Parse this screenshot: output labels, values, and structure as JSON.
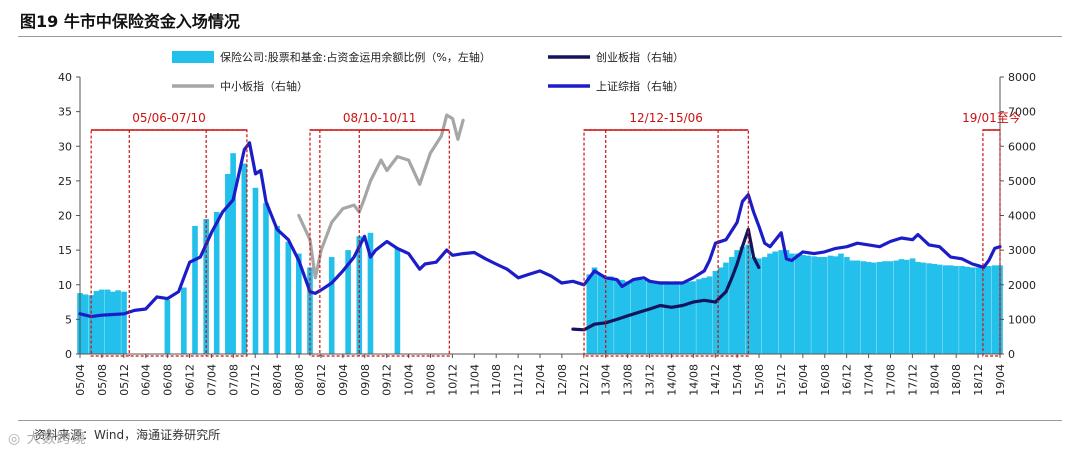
{
  "figure": {
    "title": "图19 牛市中保险资金入场情况",
    "source": "资料来源：Wind，海通证券研究所",
    "watermark": "◎ 大数跨境"
  },
  "colors": {
    "bars": "#22c0ea",
    "chinext": "#14145e",
    "sme": "#a6a6a6",
    "shanghai": "#1c1cc8",
    "box": "#cc1111"
  },
  "chart_data": {
    "type": "bar+line",
    "title": "",
    "x_tick_labels": [
      "05/04",
      "05/08",
      "05/12",
      "06/04",
      "06/08",
      "06/12",
      "07/04",
      "07/08",
      "07/12",
      "08/04",
      "08/08",
      "08/12",
      "09/04",
      "09/08",
      "09/12",
      "10/04",
      "10/08",
      "10/12",
      "11/04",
      "11/08",
      "11/12",
      "12/04",
      "12/08",
      "12/12",
      "13/04",
      "13/08",
      "13/12",
      "14/04",
      "14/08",
      "14/12",
      "15/04",
      "15/08",
      "15/12",
      "16/04",
      "16/08",
      "16/12",
      "17/04",
      "17/08",
      "17/12",
      "18/04",
      "18/08",
      "18/12",
      "19/04"
    ],
    "y_left": {
      "min": 0,
      "max": 40,
      "ticks": [
        "0",
        "5",
        "10",
        "15",
        "20",
        "25",
        "30",
        "35",
        "40"
      ]
    },
    "y_right": {
      "min": 0,
      "max": 8000,
      "ticks": [
        "0",
        "1000",
        "2000",
        "3000",
        "4000",
        "5000",
        "6000",
        "7000",
        "8000"
      ]
    },
    "legend": [
      {
        "key": "bars",
        "label": "保险公司:股票和基金:占资金运用余额比例（%，左轴）"
      },
      {
        "key": "chinext",
        "label": "创业板指（右轴）"
      },
      {
        "key": "sme",
        "label": "中小板指（右轴）"
      },
      {
        "key": "shanghai",
        "label": "上证综指（右轴）"
      }
    ],
    "periods": [
      {
        "label": "05/06-07/10",
        "start": 2005.42,
        "end": 2007.79,
        "inner": [
          2006.0,
          2007.17
        ]
      },
      {
        "label": "08/10-10/11",
        "start": 2008.75,
        "end": 2010.87,
        "inner": [
          2008.9,
          2009.5
        ]
      },
      {
        "label": "12/12-15/06",
        "start": 2012.92,
        "end": 2015.42,
        "inner": [
          2013.25,
          2014.96
        ]
      },
      {
        "label": "19/01至今",
        "start": 2018.99,
        "end": 2019.25,
        "inner": []
      }
    ],
    "bars_series": {
      "name": "保险公司:股票和基金:占资金运用余额比例（%，左轴）",
      "points": [
        [
          2005.25,
          8.8
        ],
        [
          2005.33,
          8.6
        ],
        [
          2005.42,
          8.5
        ],
        [
          2005.5,
          9.1
        ],
        [
          2005.58,
          9.3
        ],
        [
          2005.67,
          9.3
        ],
        [
          2005.75,
          9.0
        ],
        [
          2005.83,
          9.2
        ],
        [
          2005.92,
          9.0
        ],
        [
          2006.58,
          7.8
        ],
        [
          2006.83,
          9.6
        ],
        [
          2007.0,
          18.5
        ],
        [
          2007.17,
          19.5
        ],
        [
          2007.33,
          20.5
        ],
        [
          2007.5,
          26.0
        ],
        [
          2007.58,
          29.0
        ],
        [
          2007.75,
          27.5
        ],
        [
          2007.92,
          24.0
        ],
        [
          2008.08,
          21.8
        ],
        [
          2008.25,
          18.5
        ],
        [
          2008.42,
          16.2
        ],
        [
          2008.58,
          14.5
        ],
        [
          2008.75,
          12.5
        ],
        [
          2009.08,
          14.0
        ],
        [
          2009.33,
          15.0
        ],
        [
          2009.5,
          17.0
        ],
        [
          2009.67,
          17.5
        ],
        [
          2010.08,
          15.3
        ],
        [
          2013.0,
          11.5
        ],
        [
          2013.08,
          12.5
        ],
        [
          2013.17,
          11.5
        ],
        [
          2013.25,
          11.0
        ],
        [
          2013.33,
          11.2
        ],
        [
          2013.42,
          10.8
        ],
        [
          2013.5,
          10.7
        ],
        [
          2013.58,
          10.5
        ],
        [
          2013.67,
          10.6
        ],
        [
          2013.75,
          10.8
        ],
        [
          2013.83,
          10.7
        ],
        [
          2013.92,
          10.6
        ],
        [
          2014.0,
          10.5
        ],
        [
          2014.08,
          10.5
        ],
        [
          2014.17,
          10.5
        ],
        [
          2014.25,
          10.4
        ],
        [
          2014.33,
          10.5
        ],
        [
          2014.42,
          10.4
        ],
        [
          2014.5,
          10.4
        ],
        [
          2014.58,
          10.5
        ],
        [
          2014.67,
          10.8
        ],
        [
          2014.75,
          11.0
        ],
        [
          2014.83,
          11.2
        ],
        [
          2014.92,
          12.0
        ],
        [
          2015.0,
          12.5
        ],
        [
          2015.08,
          13.2
        ],
        [
          2015.17,
          14.0
        ],
        [
          2015.25,
          15.0
        ],
        [
          2015.33,
          15.5
        ],
        [
          2015.42,
          15.8
        ],
        [
          2015.5,
          14.0
        ],
        [
          2015.58,
          13.8
        ],
        [
          2015.67,
          14.0
        ],
        [
          2015.75,
          14.5
        ],
        [
          2015.83,
          14.8
        ],
        [
          2015.92,
          15.0
        ],
        [
          2016.0,
          15.0
        ],
        [
          2016.08,
          14.5
        ],
        [
          2016.17,
          14.5
        ],
        [
          2016.25,
          14.3
        ],
        [
          2016.33,
          14.2
        ],
        [
          2016.42,
          14.1
        ],
        [
          2016.5,
          14.0
        ],
        [
          2016.58,
          14.0
        ],
        [
          2016.67,
          14.2
        ],
        [
          2016.75,
          14.1
        ],
        [
          2016.83,
          14.5
        ],
        [
          2016.92,
          14.0
        ],
        [
          2017.0,
          13.5
        ],
        [
          2017.08,
          13.5
        ],
        [
          2017.17,
          13.4
        ],
        [
          2017.25,
          13.3
        ],
        [
          2017.33,
          13.2
        ],
        [
          2017.42,
          13.3
        ],
        [
          2017.5,
          13.4
        ],
        [
          2017.58,
          13.4
        ],
        [
          2017.67,
          13.5
        ],
        [
          2017.75,
          13.7
        ],
        [
          2017.83,
          13.6
        ],
        [
          2017.92,
          13.8
        ],
        [
          2018.0,
          13.3
        ],
        [
          2018.08,
          13.2
        ],
        [
          2018.17,
          13.1
        ],
        [
          2018.25,
          13.0
        ],
        [
          2018.33,
          12.9
        ],
        [
          2018.42,
          12.8
        ],
        [
          2018.5,
          12.8
        ],
        [
          2018.58,
          12.7
        ],
        [
          2018.67,
          12.7
        ],
        [
          2018.75,
          12.6
        ],
        [
          2018.83,
          12.5
        ],
        [
          2018.92,
          12.5
        ],
        [
          2019.0,
          12.6
        ],
        [
          2019.08,
          12.7
        ],
        [
          2019.17,
          12.8
        ],
        [
          2019.25,
          12.8
        ]
      ]
    },
    "series": [
      {
        "key": "shanghai",
        "name": "上证综指（右轴）",
        "points": [
          [
            2005.25,
            1160
          ],
          [
            2005.42,
            1080
          ],
          [
            2005.58,
            1120
          ],
          [
            2005.75,
            1140
          ],
          [
            2005.92,
            1160
          ],
          [
            2006.08,
            1260
          ],
          [
            2006.25,
            1300
          ],
          [
            2006.42,
            1650
          ],
          [
            2006.58,
            1600
          ],
          [
            2006.75,
            1800
          ],
          [
            2006.92,
            2650
          ],
          [
            2007.08,
            2800
          ],
          [
            2007.25,
            3500
          ],
          [
            2007.42,
            4100
          ],
          [
            2007.58,
            4450
          ],
          [
            2007.75,
            5900
          ],
          [
            2007.83,
            6100
          ],
          [
            2007.92,
            5200
          ],
          [
            2008.0,
            5300
          ],
          [
            2008.08,
            4400
          ],
          [
            2008.25,
            3600
          ],
          [
            2008.42,
            3300
          ],
          [
            2008.58,
            2700
          ],
          [
            2008.75,
            1800
          ],
          [
            2008.83,
            1750
          ],
          [
            2008.92,
            1850
          ],
          [
            2009.08,
            2050
          ],
          [
            2009.25,
            2400
          ],
          [
            2009.42,
            2800
          ],
          [
            2009.58,
            3400
          ],
          [
            2009.67,
            2800
          ],
          [
            2009.75,
            3000
          ],
          [
            2009.92,
            3250
          ],
          [
            2010.08,
            3050
          ],
          [
            2010.25,
            2900
          ],
          [
            2010.42,
            2450
          ],
          [
            2010.5,
            2600
          ],
          [
            2010.67,
            2650
          ],
          [
            2010.83,
            3000
          ],
          [
            2010.92,
            2850
          ],
          [
            2011.08,
            2900
          ],
          [
            2011.25,
            2930
          ],
          [
            2011.42,
            2750
          ],
          [
            2011.58,
            2600
          ],
          [
            2011.75,
            2450
          ],
          [
            2011.92,
            2200
          ],
          [
            2012.08,
            2300
          ],
          [
            2012.25,
            2400
          ],
          [
            2012.42,
            2250
          ],
          [
            2012.58,
            2050
          ],
          [
            2012.75,
            2100
          ],
          [
            2012.92,
            2000
          ],
          [
            2013.08,
            2400
          ],
          [
            2013.25,
            2200
          ],
          [
            2013.42,
            2150
          ],
          [
            2013.5,
            1950
          ],
          [
            2013.67,
            2150
          ],
          [
            2013.83,
            2200
          ],
          [
            2013.92,
            2100
          ],
          [
            2014.08,
            2050
          ],
          [
            2014.25,
            2050
          ],
          [
            2014.42,
            2050
          ],
          [
            2014.58,
            2200
          ],
          [
            2014.75,
            2400
          ],
          [
            2014.83,
            2700
          ],
          [
            2014.92,
            3200
          ],
          [
            2015.08,
            3300
          ],
          [
            2015.25,
            3800
          ],
          [
            2015.33,
            4400
          ],
          [
            2015.42,
            4600
          ],
          [
            2015.5,
            4100
          ],
          [
            2015.58,
            3700
          ],
          [
            2015.67,
            3200
          ],
          [
            2015.75,
            3100
          ],
          [
            2015.92,
            3500
          ],
          [
            2016.0,
            2750
          ],
          [
            2016.08,
            2700
          ],
          [
            2016.25,
            2950
          ],
          [
            2016.42,
            2900
          ],
          [
            2016.58,
            2950
          ],
          [
            2016.75,
            3050
          ],
          [
            2016.92,
            3100
          ],
          [
            2017.08,
            3200
          ],
          [
            2017.25,
            3150
          ],
          [
            2017.42,
            3100
          ],
          [
            2017.58,
            3250
          ],
          [
            2017.75,
            3350
          ],
          [
            2017.92,
            3300
          ],
          [
            2018.0,
            3450
          ],
          [
            2018.17,
            3150
          ],
          [
            2018.33,
            3100
          ],
          [
            2018.5,
            2800
          ],
          [
            2018.67,
            2750
          ],
          [
            2018.83,
            2600
          ],
          [
            2018.92,
            2550
          ],
          [
            2019.0,
            2500
          ],
          [
            2019.08,
            2700
          ],
          [
            2019.17,
            3050
          ],
          [
            2019.25,
            3100
          ]
        ]
      },
      {
        "key": "sme",
        "name": "中小板指（右轴）",
        "points": [
          [
            2008.58,
            4000
          ],
          [
            2008.75,
            3300
          ],
          [
            2008.83,
            2200
          ],
          [
            2008.92,
            3000
          ],
          [
            2009.08,
            3800
          ],
          [
            2009.25,
            4200
          ],
          [
            2009.42,
            4300
          ],
          [
            2009.5,
            4100
          ],
          [
            2009.58,
            4500
          ],
          [
            2009.67,
            5000
          ],
          [
            2009.83,
            5600
          ],
          [
            2009.92,
            5300
          ],
          [
            2010.08,
            5700
          ],
          [
            2010.25,
            5600
          ],
          [
            2010.42,
            4900
          ],
          [
            2010.58,
            5800
          ],
          [
            2010.75,
            6300
          ],
          [
            2010.83,
            6900
          ],
          [
            2010.92,
            6800
          ],
          [
            2011.0,
            6200
          ],
          [
            2011.08,
            6750
          ]
        ]
      },
      {
        "key": "chinext",
        "name": "创业板指（右轴）",
        "points": [
          [
            2012.75,
            720
          ],
          [
            2012.92,
            700
          ],
          [
            2013.08,
            860
          ],
          [
            2013.25,
            900
          ],
          [
            2013.42,
            1000
          ],
          [
            2013.58,
            1100
          ],
          [
            2013.75,
            1200
          ],
          [
            2013.92,
            1300
          ],
          [
            2014.08,
            1400
          ],
          [
            2014.25,
            1350
          ],
          [
            2014.42,
            1400
          ],
          [
            2014.58,
            1500
          ],
          [
            2014.75,
            1550
          ],
          [
            2014.92,
            1500
          ],
          [
            2015.0,
            1650
          ],
          [
            2015.08,
            1800
          ],
          [
            2015.17,
            2200
          ],
          [
            2015.25,
            2600
          ],
          [
            2015.33,
            3100
          ],
          [
            2015.42,
            3600
          ],
          [
            2015.5,
            2800
          ],
          [
            2015.58,
            2500
          ]
        ]
      }
    ]
  }
}
